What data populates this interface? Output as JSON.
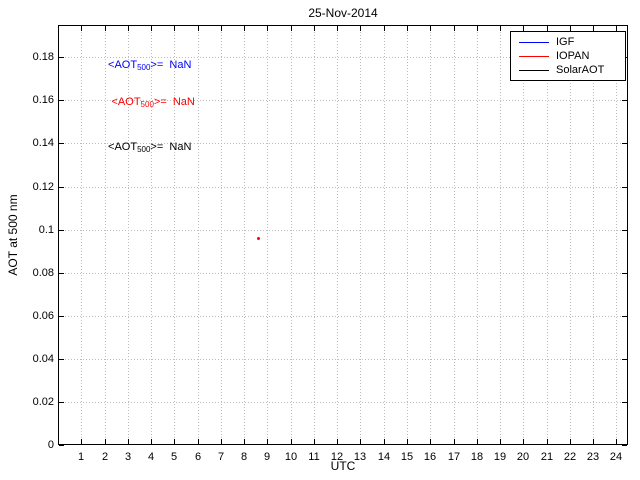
{
  "chart_data": {
    "type": "scatter",
    "title": "25-Nov-2014",
    "xlabel": "UTC",
    "ylabel": "AOT at 500 nm",
    "xlim": [
      0,
      24.5
    ],
    "ylim": [
      0,
      0.195
    ],
    "xticks": [
      1,
      2,
      3,
      4,
      5,
      6,
      7,
      8,
      9,
      10,
      11,
      12,
      13,
      14,
      15,
      16,
      17,
      18,
      19,
      20,
      21,
      22,
      23,
      24
    ],
    "yticks": [
      0,
      0.02,
      0.04,
      0.06,
      0.08,
      0.1,
      0.12,
      0.14,
      0.16,
      0.18
    ],
    "ytick_labels": [
      "0",
      "0.02",
      "0.04",
      "0.06",
      "0.08",
      "0.1",
      "0.12",
      "0.14",
      "0.16",
      "0.18"
    ],
    "grid": true,
    "legend": {
      "position": "top-right",
      "entries": [
        {
          "label": "IGF",
          "color": "#0000ff"
        },
        {
          "label": "IOPAN",
          "color": "#ff0000"
        },
        {
          "label": "SolarAOT",
          "color": "#000000"
        }
      ]
    },
    "series": [
      {
        "name": "IGF",
        "color": "#0000ff",
        "points": []
      },
      {
        "name": "IOPAN",
        "color": "#ff0000",
        "points": [
          [
            8.6,
            0.096
          ]
        ]
      },
      {
        "name": "SolarAOT",
        "color": "#000000",
        "points": []
      }
    ],
    "annotations": [
      {
        "prefix": "<AOT",
        "sub": "500",
        "suffix": ">=  NaN",
        "color": "#0000ff",
        "x": 2.15,
        "y": 0.176
      },
      {
        "prefix": "<AOT",
        "sub": "500",
        "suffix": ">=  NaN",
        "color": "#ff0000",
        "x": 2.3,
        "y": 0.159
      },
      {
        "prefix": "<AOT",
        "sub": "500",
        "suffix": ">=  NaN",
        "color": "#000000",
        "x": 2.15,
        "y": 0.138
      }
    ]
  }
}
